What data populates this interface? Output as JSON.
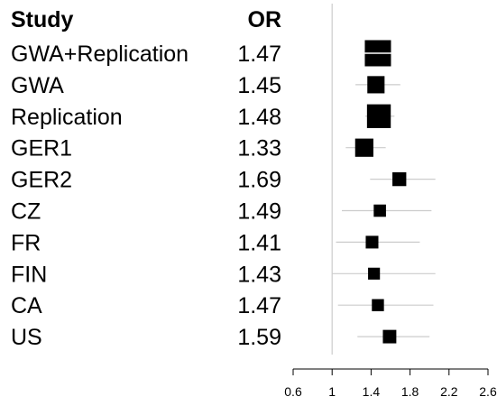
{
  "chart_data": {
    "type": "forest",
    "columns": {
      "study": "Study",
      "or": "OR"
    },
    "reference_value": 1,
    "xlim": [
      0.6,
      2.6
    ],
    "xticks": [
      0.6,
      1,
      1.4,
      1.8,
      2.2,
      2.6
    ],
    "xtick_labels": [
      "0.6",
      "1",
      "1.4",
      "1.8",
      "2.2",
      "2.6"
    ],
    "rows": [
      {
        "study": "GWA+Replication",
        "or": 1.47,
        "or_label": "1.47",
        "ci": [
          1.36,
          1.59
        ],
        "weight": 1.0,
        "summary": true
      },
      {
        "study": "GWA",
        "or": 1.45,
        "or_label": "1.45",
        "ci": [
          1.24,
          1.7
        ],
        "weight": 0.55
      },
      {
        "study": "Replication",
        "or": 1.48,
        "or_label": "1.48",
        "ci": [
          1.34,
          1.64
        ],
        "weight": 0.88
      },
      {
        "study": "GER1",
        "or": 1.33,
        "or_label": "1.33",
        "ci": [
          1.14,
          1.55
        ],
        "weight": 0.6
      },
      {
        "study": "GER2",
        "or": 1.69,
        "or_label": "1.69",
        "ci": [
          1.39,
          2.06
        ],
        "weight": 0.38
      },
      {
        "study": "CZ",
        "or": 1.49,
        "or_label": "1.49",
        "ci": [
          1.1,
          2.02
        ],
        "weight": 0.3
      },
      {
        "study": "FR",
        "or": 1.41,
        "or_label": "1.41",
        "ci": [
          1.04,
          1.9
        ],
        "weight": 0.32
      },
      {
        "study": "FIN",
        "or": 1.43,
        "or_label": "1.43",
        "ci": [
          1.0,
          2.06
        ],
        "weight": 0.28
      },
      {
        "study": "CA",
        "or": 1.47,
        "or_label": "1.47",
        "ci": [
          1.06,
          2.04
        ],
        "weight": 0.29
      },
      {
        "study": "US",
        "or": 1.59,
        "or_label": "1.59",
        "ci": [
          1.26,
          2.0
        ],
        "weight": 0.36
      }
    ],
    "colors": {
      "marker": "#000000",
      "ci_line": "#cccccc",
      "reference_line": "#cccccc",
      "axis": "#000000"
    }
  }
}
